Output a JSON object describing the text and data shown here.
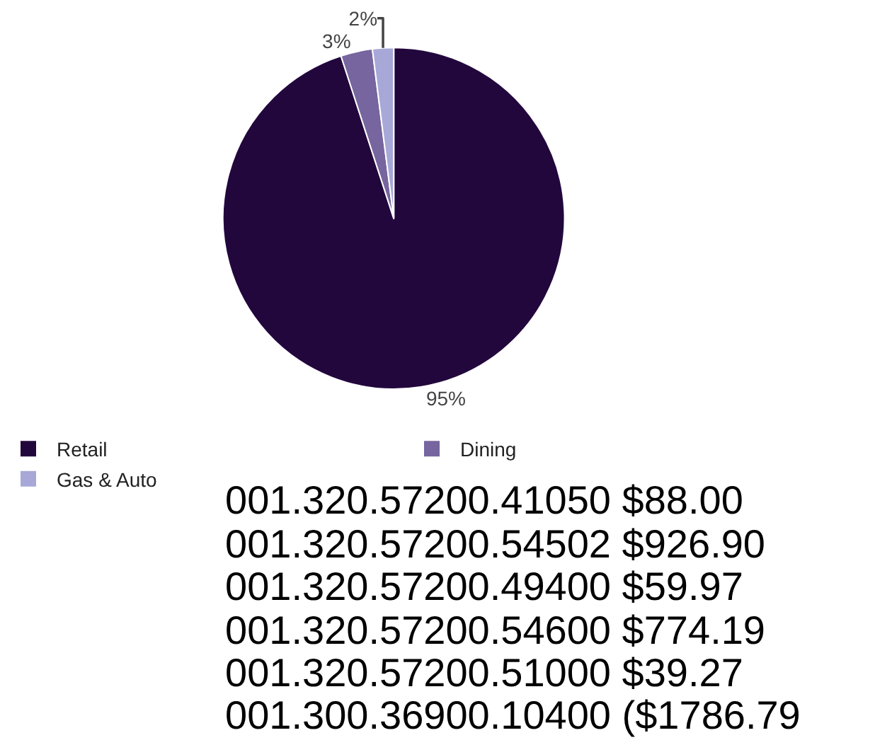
{
  "chart_data": {
    "type": "pie",
    "categories": [
      "Retail",
      "Dining",
      "Gas & Auto"
    ],
    "values": [
      95,
      3,
      2
    ],
    "colors": [
      "#22073d",
      "#76659e",
      "#a7a8d8"
    ],
    "value_labels": [
      "95%",
      "3%",
      "2%"
    ],
    "legend": "bottom left",
    "annotations": [
      "001.320.57200.41050 $88.00",
      "001.320.57200.54502 $926.90",
      "001.320.57200.49400 $59.97",
      "001.320.57200.54600 $774.19",
      "001.320.57200.51000 $39.27",
      "001.300.36900.10400 ($1786.79"
    ]
  }
}
